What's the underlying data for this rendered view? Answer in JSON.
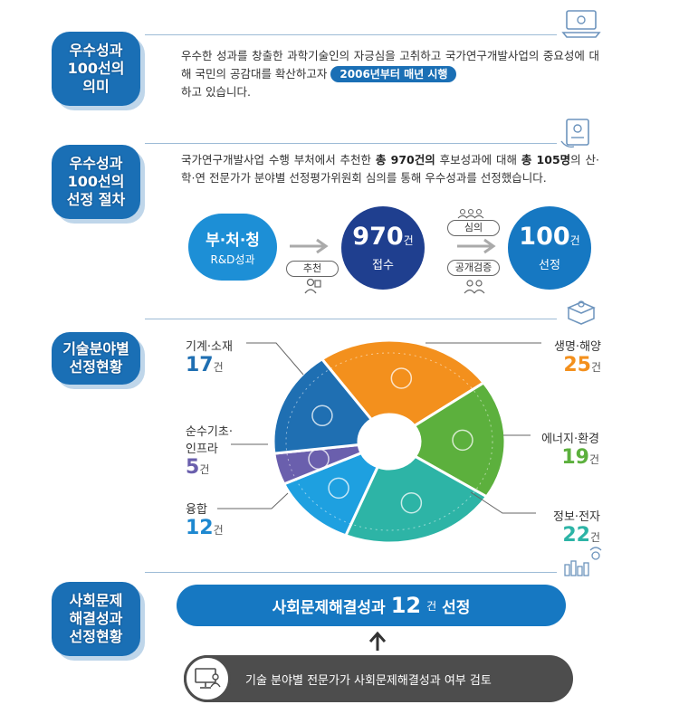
{
  "section1": {
    "badge": [
      "우수성과",
      "100선의",
      "의미"
    ],
    "text_before": "우수한 성과를 창출한 과학기술인의 자긍심을 고취하고 국가연구개발사업의 중요성에 대해 국민의 공감대를 확산하고자",
    "highlight": "2006년부터 매년 시행",
    "text_after": "하고 있습니다."
  },
  "section2": {
    "badge": [
      "우수성과",
      "100선의",
      "선정 절차"
    ],
    "text_a": "국가연구개발사업 수행 부처에서 추천한",
    "bold_a": "총 970건의",
    "text_b": "후보성과에 대해",
    "bold_b": "총 105명",
    "text_c": "의 산·학·연 전문가가 분야별 선정평가위원회 심의를 통해 우수성과를 선정했습니다.",
    "flow": {
      "source_title": "부·처·청",
      "source_sub": "R&D성과",
      "step1_label": "추천",
      "received_value": "970",
      "received_unit": "건",
      "received_label": "접수",
      "step2_top": "심의",
      "step2_bottom": "공개검증",
      "selected_value": "100",
      "selected_unit": "건",
      "selected_label": "선정"
    }
  },
  "section3": {
    "badge": [
      "기술분야별",
      "선정현황"
    ],
    "unit": "건",
    "categories": [
      {
        "label": "기계·소재",
        "value": "17",
        "color": "#1f6fb2"
      },
      {
        "label": "생명·해양",
        "value": "25",
        "color": "#f3901d"
      },
      {
        "label": "에너지·환경",
        "value": "19",
        "color": "#5cb03d"
      },
      {
        "label": "정보·전자",
        "value": "22",
        "color": "#2db4a6"
      },
      {
        "label": "융합",
        "value": "12",
        "color": "#1ea0e0"
      },
      {
        "label": "순수기초·\n인프라",
        "label_line1": "순수기초·",
        "label_line2": "인프라",
        "value": "5",
        "color": "#6a5fad"
      }
    ]
  },
  "chart_data": {
    "type": "pie",
    "categories": [
      "생명·해양",
      "에너지·환경",
      "정보·전자",
      "융합",
      "순수기초·인프라",
      "기계·소재"
    ],
    "values": [
      25,
      19,
      22,
      12,
      5,
      17
    ],
    "colors": [
      "#f3901d",
      "#5cb03d",
      "#2db4a6",
      "#1ea0e0",
      "#6a5fad",
      "#1f6fb2"
    ],
    "donut": true
  },
  "section4": {
    "badge": [
      "사회문제",
      "해결성과",
      "선정현황"
    ],
    "result_text": "사회문제해결성과",
    "result_value": "12",
    "result_unit": "건",
    "result_suffix": "선정",
    "review_text": "기술 분야별 전문가가 사회문제해결성과 여부 검토"
  }
}
